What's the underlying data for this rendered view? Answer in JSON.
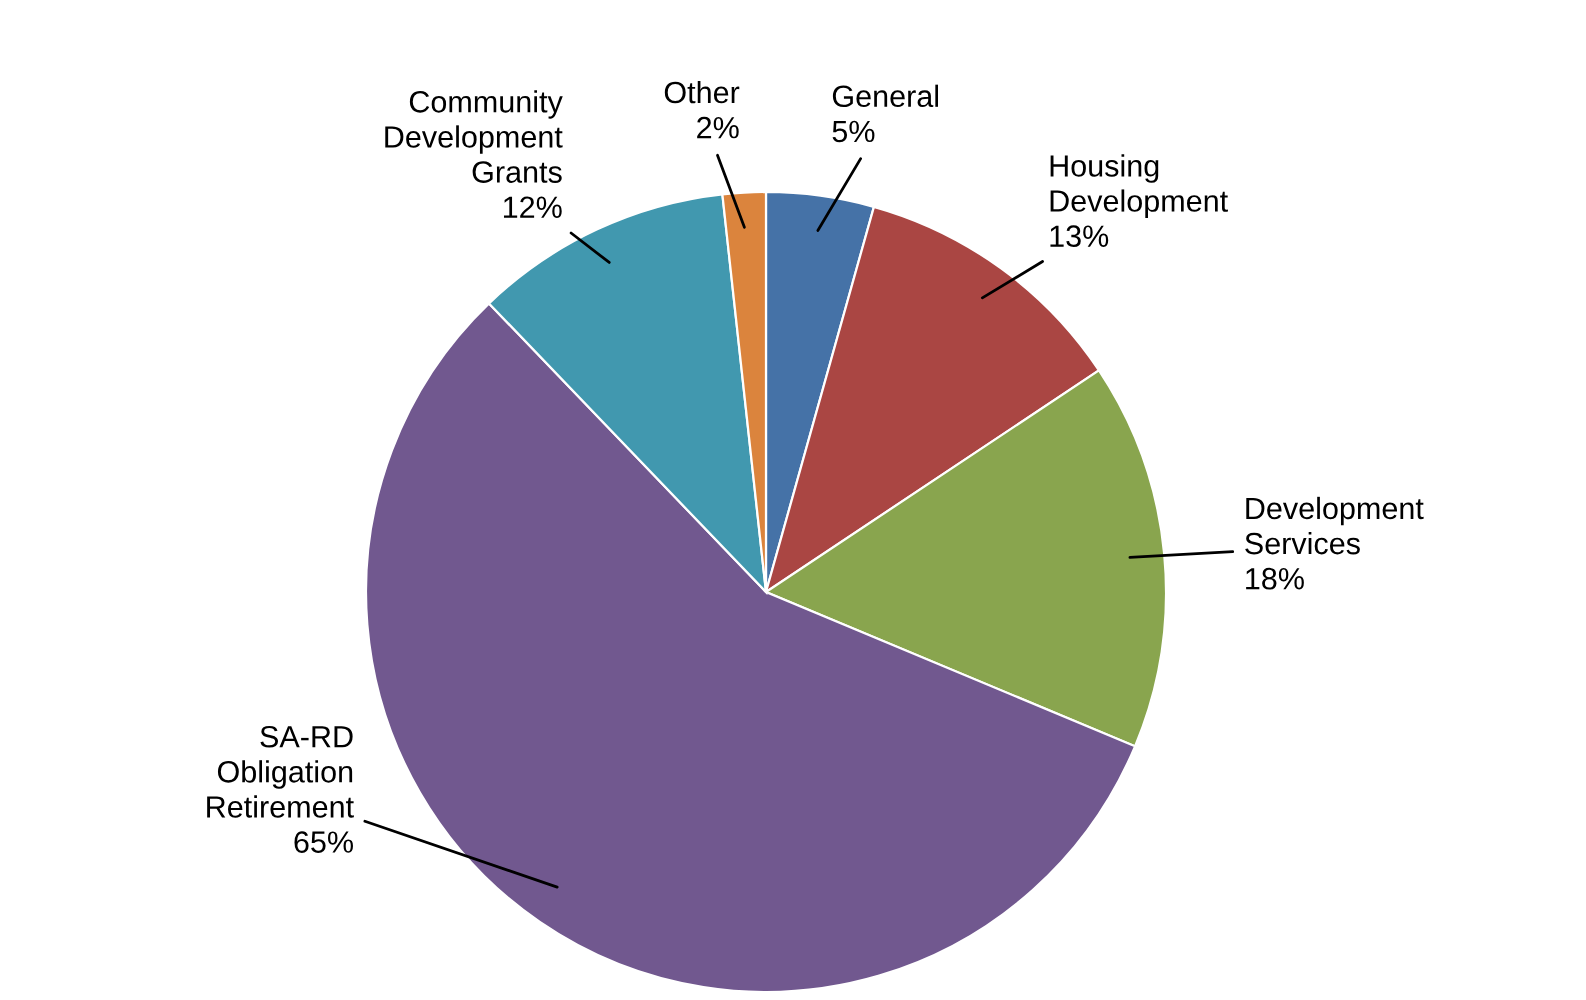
{
  "chart_data": {
    "type": "pie",
    "categories": [
      "General",
      "Housing Development",
      "Development Services",
      "SA-RD Obligation Retirement",
      "Community Development Grants",
      "Other"
    ],
    "values": [
      5,
      13,
      18,
      65,
      12,
      2
    ],
    "value_labels": [
      "5%",
      "13%",
      "18%",
      "65%",
      "12%",
      "2%"
    ],
    "colors": [
      "#4572a7",
      "#aa4643",
      "#89a54e",
      "#71588f",
      "#4198af",
      "#db843d"
    ],
    "legend": false
  }
}
